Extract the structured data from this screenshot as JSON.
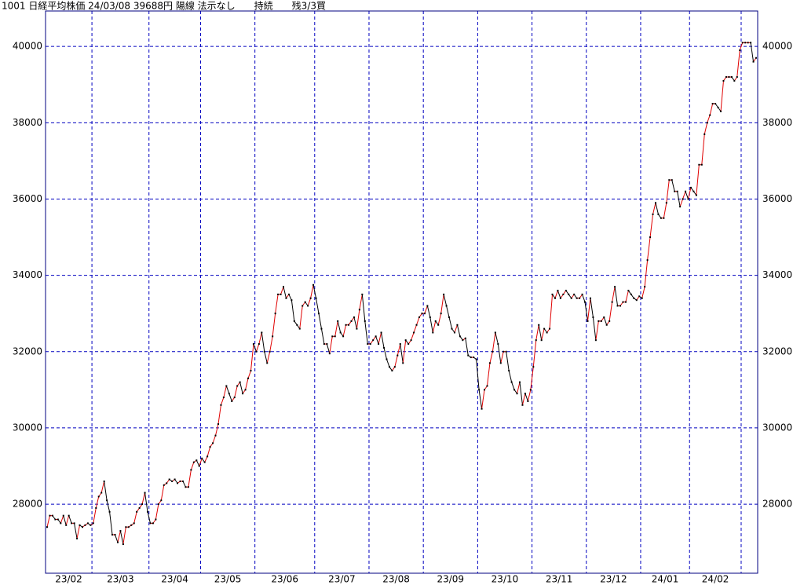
{
  "chart_data": {
    "type": "line",
    "title": "1001 日経平均株価 24/03/08 39688円 陽線 法示なし　　持続　　残3/3買",
    "ylim": [
      26190,
      40930
    ],
    "yticks": [
      28000,
      30000,
      32000,
      34000,
      36000,
      38000,
      40000
    ],
    "grid": true,
    "grid_color": "#0000c0",
    "frame_color": "#000080",
    "up_color": "#e00000",
    "down_color": "#000000",
    "marker_color": "#000000",
    "months": [
      {
        "label": "23/02",
        "values": [
          27400,
          27700,
          27700,
          27600,
          27600,
          27500,
          27700,
          27450,
          27700,
          27500,
          27500,
          27100,
          27450,
          27400,
          27450,
          27500,
          27450
        ]
      },
      {
        "label": "23/03",
        "values": [
          27500,
          27900,
          28200,
          28300,
          28600,
          28100,
          27800,
          27200,
          27200,
          27000,
          27300,
          26950,
          27400,
          27400,
          27450,
          27500,
          27800,
          27900,
          28000,
          28300,
          27800
        ]
      },
      {
        "label": "23/04",
        "values": [
          27500,
          27500,
          27600,
          28000,
          28100,
          28500,
          28550,
          28650,
          28600,
          28650,
          28550,
          28600,
          28600,
          28450,
          28450,
          28900,
          29100,
          29150,
          29000
        ]
      },
      {
        "label": "23/05",
        "values": [
          29200,
          29100,
          29250,
          29500,
          29600,
          29800,
          30100,
          30600,
          30800,
          31100,
          30900,
          30700,
          30800,
          31100,
          31200,
          30900,
          31000,
          31300,
          31500,
          32200
        ]
      },
      {
        "label": "23/06",
        "values": [
          32000,
          32200,
          32500,
          32000,
          31700,
          32000,
          32400,
          33000,
          33500,
          33500,
          33700,
          33400,
          33500,
          33350,
          32800,
          32700,
          32600,
          33200,
          33300,
          33200,
          33400,
          33750
        ]
      },
      {
        "label": "23/07",
        "values": [
          33400,
          33000,
          32600,
          32200,
          32200,
          31950,
          32400,
          32400,
          32800,
          32500,
          32400,
          32700,
          32700,
          32800,
          32900,
          32600,
          33100,
          33500,
          32800,
          32200
        ]
      },
      {
        "label": "23/08",
        "values": [
          32200,
          32300,
          32400,
          32200,
          32500,
          32100,
          31800,
          31600,
          31500,
          31600,
          31900,
          32200,
          31700,
          32300,
          32200,
          32300,
          32500,
          32700,
          32900,
          33000
        ]
      },
      {
        "label": "23/09",
        "values": [
          33000,
          33200,
          32900,
          32500,
          32800,
          32700,
          33000,
          33500,
          33200,
          32900,
          32600,
          32500,
          32700,
          32400,
          32300,
          32350,
          31900,
          31850,
          31850,
          31800
        ]
      },
      {
        "label": "23/10",
        "values": [
          31000,
          30500,
          31000,
          31100,
          31700,
          32000,
          32500,
          32200,
          31700,
          32000,
          32000,
          31500,
          31200,
          31000,
          30900,
          31200,
          30600,
          30900,
          30700,
          31000
        ]
      },
      {
        "label": "23/11",
        "values": [
          31600,
          32300,
          32700,
          32300,
          32600,
          32500,
          32600,
          33500,
          33400,
          33600,
          33400,
          33500,
          33600,
          33500,
          33400,
          33500,
          33400,
          33400,
          33500,
          33300
        ]
      },
      {
        "label": "23/12",
        "values": [
          32800,
          33400,
          32900,
          32300,
          32800,
          32800,
          32900,
          32700,
          32800,
          33300,
          33700,
          33200,
          33200,
          33300,
          33300,
          33600,
          33500,
          33400,
          33350,
          33450
        ]
      },
      {
        "label": "24/01",
        "values": [
          33400,
          33700,
          34400,
          35000,
          35600,
          35900,
          35600,
          35500,
          35500,
          35900,
          36500,
          36500,
          36200,
          36200,
          35800,
          36000,
          36200,
          36000
        ]
      },
      {
        "label": "24/02",
        "values": [
          36300,
          36200,
          36100,
          36900,
          36900,
          37700,
          38000,
          38200,
          38500,
          38500,
          38400,
          38300,
          39100,
          39200,
          39200,
          39200,
          39100,
          39200,
          39900
        ]
      },
      {
        "label": null,
        "values": [
          40100,
          40100,
          40100,
          40100,
          39600,
          39700
        ]
      }
    ]
  }
}
